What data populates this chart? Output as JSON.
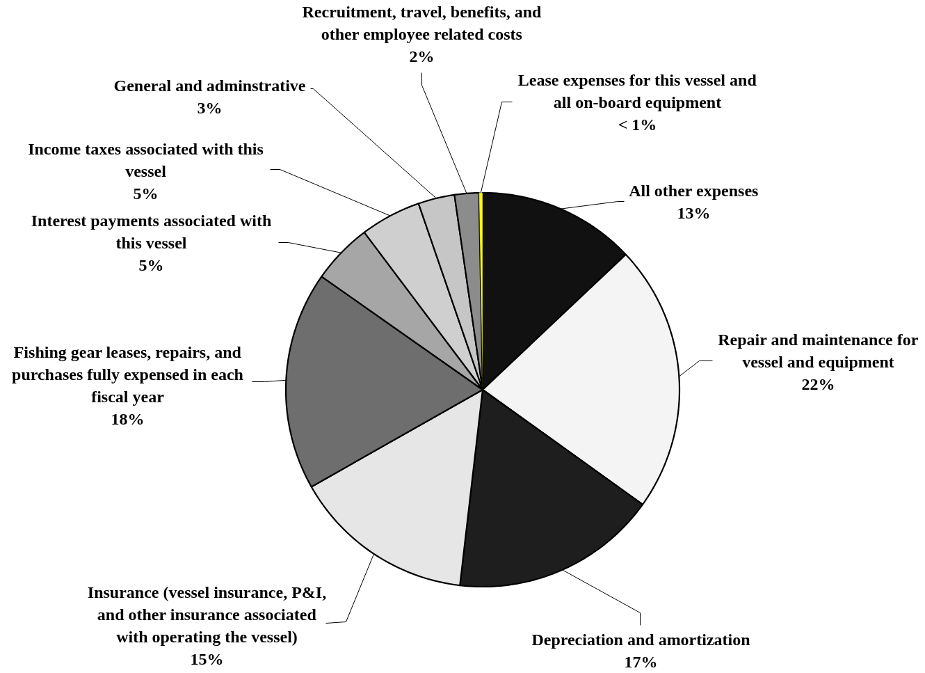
{
  "chart_data": {
    "type": "pie",
    "categories": [
      "All other expenses",
      "Repair and maintenance for vessel and equipment",
      "Depreciation and amortization",
      "Insurance (vessel insurance, P&I, and other insurance associated with operating the vessel)",
      "Fishing gear leases, repairs, and purchases fully expensed in each fiscal year",
      "Interest payments associated with this vessel",
      "Income taxes associated with this vessel",
      "General and adminstrative",
      "Recruitment, travel, benefits, and other employee related costs",
      "Lease expenses for this vessel and all on-board equipment"
    ],
    "values": [
      13,
      22,
      17,
      15,
      18,
      5,
      5,
      3,
      2,
      0.3
    ],
    "value_labels": [
      "13%",
      "22%",
      "17%",
      "15%",
      "18%",
      "5%",
      "5%",
      "3%",
      "2%",
      "< 1%"
    ],
    "colors": [
      "#111111",
      "#f4f4f4",
      "#1e1e1e",
      "#e6e6e6",
      "#6e6e6e",
      "#a6a6a6",
      "#cfcfcf",
      "#c6c6c6",
      "#8c8c8c",
      "#ffff00"
    ]
  }
}
